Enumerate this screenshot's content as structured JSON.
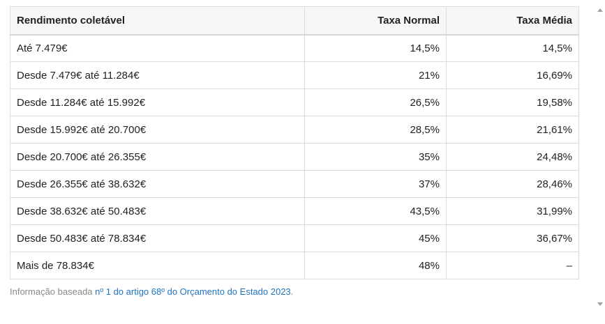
{
  "table": {
    "headers": [
      "Rendimento coletável",
      "Taxa Normal",
      "Taxa Média"
    ],
    "rows": [
      [
        "Até 7.479€",
        "14,5%",
        "14,5%"
      ],
      [
        "Desde 7.479€ até 11.284€",
        "21%",
        "16,69%"
      ],
      [
        "Desde 11.284€ até 15.992€",
        "26,5%",
        "19,58%"
      ],
      [
        "Desde 15.992€ até 20.700€",
        "28,5%",
        "21,61%"
      ],
      [
        "Desde 20.700€ até 26.355€",
        "35%",
        "24,48%"
      ],
      [
        "Desde 26.355€ até 38.632€",
        "37%",
        "28,46%"
      ],
      [
        "Desde 38.632€ até 50.483€",
        "43,5%",
        "31,99%"
      ],
      [
        "Desde 50.483€ até 78.834€",
        "45%",
        "36,67%"
      ],
      [
        "Mais de 78.834€",
        "48%",
        "–"
      ]
    ]
  },
  "footnote": {
    "prefix": "Informação baseada ",
    "link_text": "nº 1 do artigo 68º do Orçamento do Estado 2023",
    "suffix": "."
  }
}
